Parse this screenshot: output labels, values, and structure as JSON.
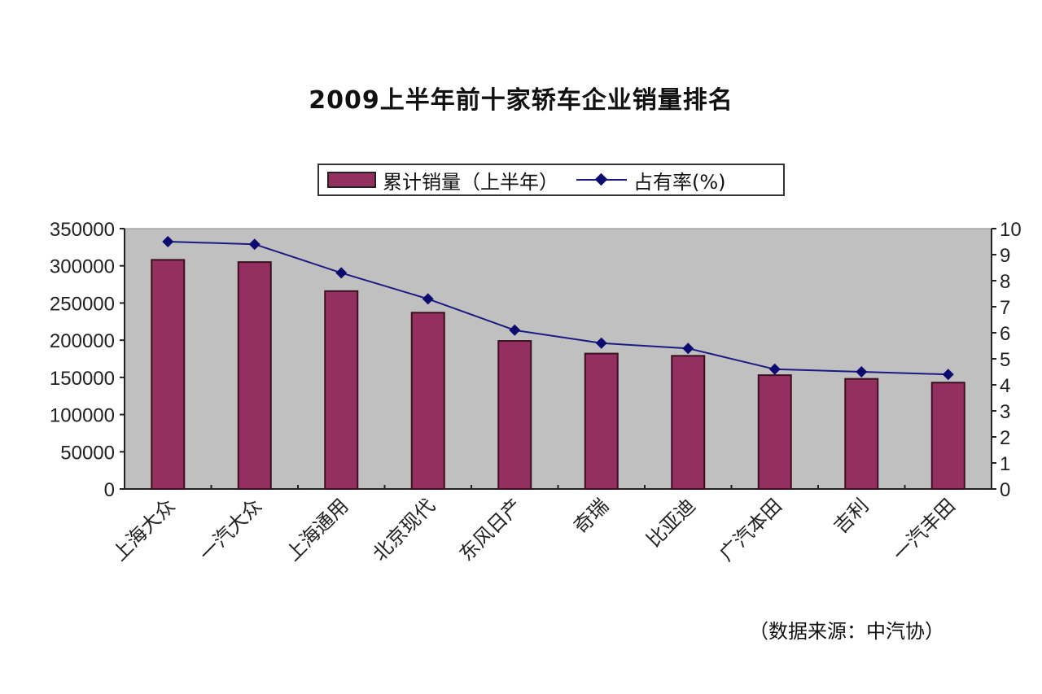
{
  "chart_data": {
    "type": "bar",
    "title": "2009上半年前十家轿车企业销量排名",
    "categories": [
      "上海大众",
      "一汽大众",
      "上海通用",
      "北京现代",
      "东风日产",
      "奇瑞",
      "比亚迪",
      "广汽本田",
      "吉利",
      "一汽丰田"
    ],
    "series": [
      {
        "name": "累计销量（上半年）",
        "type": "bar",
        "axis": "left",
        "color": "#943060",
        "values": [
          308000,
          305000,
          266000,
          237000,
          199000,
          182000,
          179000,
          153000,
          148000,
          143000
        ]
      },
      {
        "name": "占有率(%)",
        "type": "line",
        "axis": "right",
        "color": "#1a1a80",
        "marker": "diamond",
        "values": [
          9.5,
          9.4,
          8.3,
          7.3,
          6.1,
          5.6,
          5.4,
          4.6,
          4.5,
          4.4
        ]
      }
    ],
    "xlabel": "",
    "ylabel": "",
    "ylim": [
      0,
      350000
    ],
    "y2lim": [
      0,
      10
    ],
    "yticks": [
      "0",
      "50000",
      "100000",
      "150000",
      "200000",
      "250000",
      "300000",
      "350000"
    ],
    "y2ticks": [
      "0",
      "1",
      "2",
      "3",
      "4",
      "5",
      "6",
      "7",
      "8",
      "9",
      "10"
    ],
    "legend_position": "top",
    "grid": false,
    "plot_background": "#c0c0c0",
    "annotation": "（数据来源：中汽协）"
  },
  "legend": {
    "bar_label": "累计销量（上半年）",
    "line_label": "占有率(%)"
  },
  "source_note": "（数据来源：中汽协）"
}
